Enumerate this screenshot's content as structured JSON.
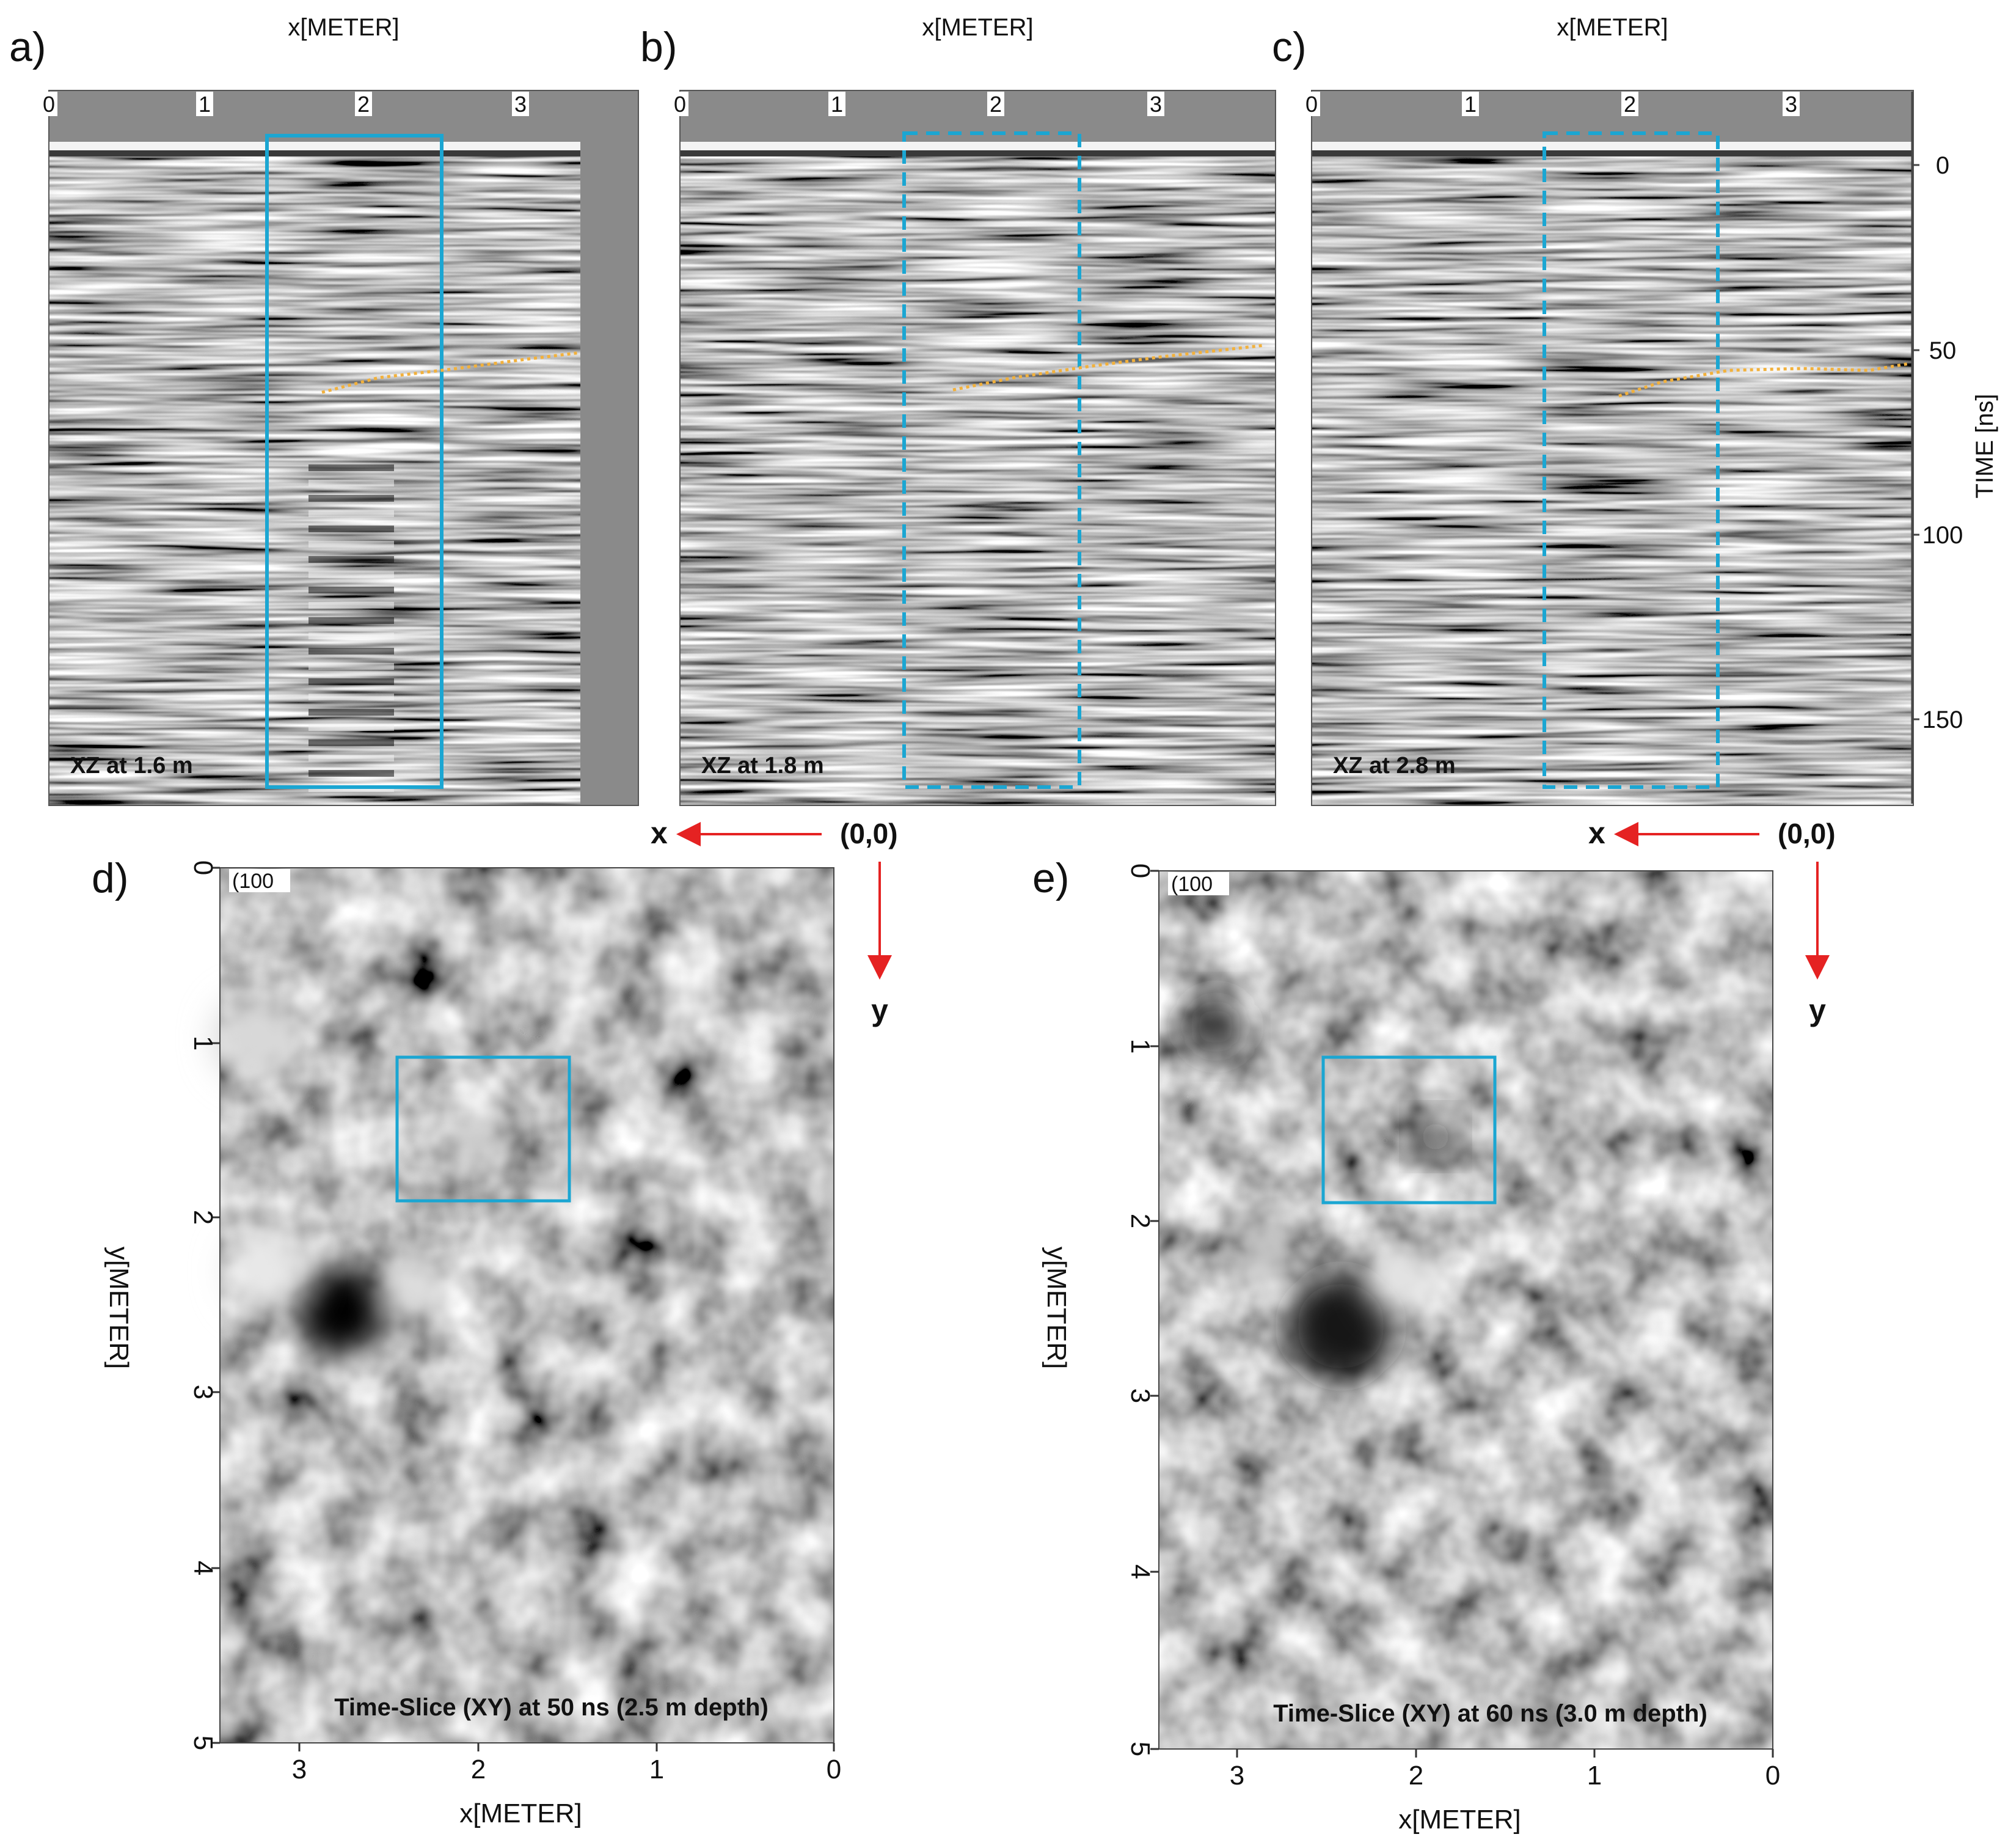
{
  "colors": {
    "box": "#1ba6d2",
    "trace": "#f2b13c",
    "arrow": "#e52222",
    "panel_bg": "#8a8a8a"
  },
  "top_panels": [
    {
      "letter": "a)",
      "axis_title": "x[METER]",
      "caption": "XZ at 1.6 m",
      "box_style": "solid",
      "x_ticks": [
        "0",
        "1",
        "2",
        "3"
      ]
    },
    {
      "letter": "b)",
      "axis_title": "x[METER]",
      "caption": "XZ at 1.8 m",
      "box_style": "dashed",
      "x_ticks": [
        "0",
        "1",
        "2",
        "3"
      ]
    },
    {
      "letter": "c)",
      "axis_title": "x[METER]",
      "caption": "XZ at 2.8 m",
      "box_style": "dashed",
      "x_ticks": [
        "0",
        "1",
        "2",
        "3"
      ]
    }
  ],
  "time_axis": {
    "label": "TIME [ns]",
    "ticks": [
      "0",
      "50",
      "100",
      "150"
    ]
  },
  "bottom_panels": [
    {
      "letter": "d)",
      "caption": "Time-Slice (XY) at 50 ns (2.5 m depth)",
      "x_label": "x[METER]",
      "y_label": "y[METER]",
      "corner_label": "(100",
      "x_ticks": [
        "3",
        "2",
        "1",
        "0"
      ],
      "y_ticks": [
        "0",
        "1",
        "2",
        "3",
        "4",
        "5"
      ]
    },
    {
      "letter": "e)",
      "caption": "Time-Slice (XY) at 60 ns (3.0 m depth)",
      "x_label": "x[METER]",
      "y_label": "y[METER]",
      "corner_label": "(100",
      "x_ticks": [
        "3",
        "2",
        "1",
        "0"
      ],
      "y_ticks": [
        "0",
        "1",
        "2",
        "3",
        "4",
        "5"
      ]
    }
  ],
  "orientation": {
    "x": "x",
    "y": "y",
    "origin": "(0,0)"
  }
}
